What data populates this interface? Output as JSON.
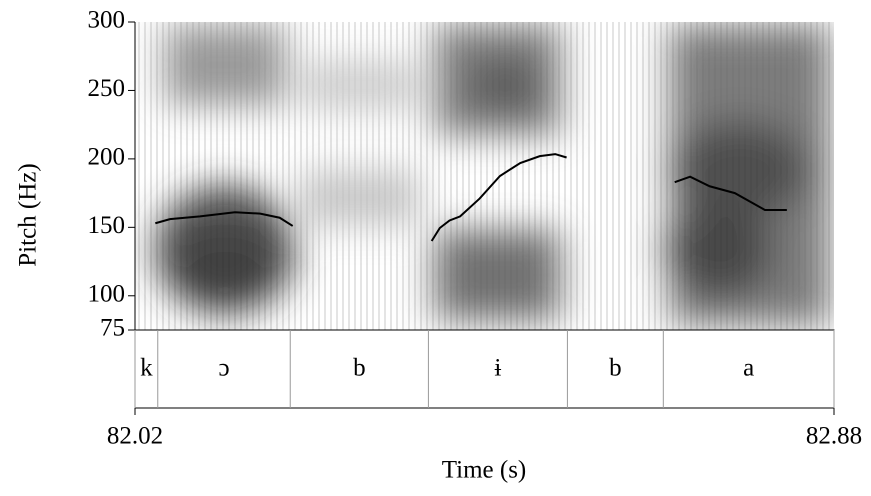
{
  "chart_data": {
    "type": "line",
    "ylabel": "Pitch (Hz)",
    "xlabel": "Time (s)",
    "ylim": [
      75,
      300
    ],
    "yticks": [
      75,
      100,
      150,
      200,
      250,
      300
    ],
    "xlim": [
      82.02,
      82.88
    ],
    "xticks": [
      82.02,
      82.88
    ],
    "x": [
      82.045,
      82.063,
      82.1,
      82.143,
      82.174,
      82.198,
      82.214,
      null,
      82.385,
      82.395,
      82.407,
      82.42,
      82.444,
      82.469,
      82.494,
      82.518,
      82.537,
      82.551,
      null,
      82.684,
      82.703,
      82.727,
      82.758,
      82.795,
      82.822
    ],
    "series": [
      {
        "color": "#000000",
        "values": [
          153,
          156,
          158,
          161,
          160,
          157,
          151,
          null,
          140,
          149.5,
          155,
          158,
          171,
          187.5,
          197,
          202,
          203.5,
          201,
          null,
          183,
          187,
          180,
          175,
          162.7,
          162.7
        ]
      }
    ],
    "tier_boundaries": [
      82.02,
      82.048,
      82.211,
      82.381,
      82.552,
      82.67,
      82.88
    ],
    "tier_labels": [
      "k",
      "ɔ",
      "b",
      "ɨ",
      "b",
      "a"
    ]
  }
}
